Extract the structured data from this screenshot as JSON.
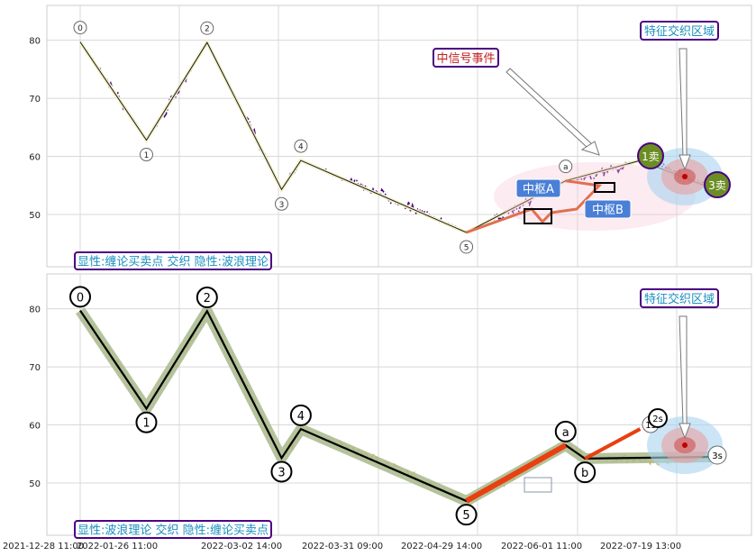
{
  "chart_data": [
    {
      "type": "line",
      "panel": "top",
      "yticks": [
        50,
        60,
        70,
        80
      ],
      "ylim": [
        41,
        86
      ],
      "grid": true,
      "colors": {
        "price": "#4b0082",
        "wave": "#1a1a1a",
        "wave_fill": "#f2f0c8",
        "zone": "#f5c6d6",
        "hub": "#4a7fd6"
      },
      "wave_points": [
        {
          "label": "0",
          "x": "2021-12-31",
          "y": 79.7
        },
        {
          "label": "1",
          "x": "2022-01-24",
          "y": 62.8
        },
        {
          "label": "2",
          "x": "2022-02-15",
          "y": 79.6
        },
        {
          "label": "3",
          "x": "2022-03-14",
          "y": 54.3
        },
        {
          "label": "4",
          "x": "2022-03-21",
          "y": 59.3
        },
        {
          "label": "5",
          "x": "2022-05-20",
          "y": 46.9
        },
        {
          "label": "a",
          "x": "2022-06-25",
          "y": 55.8
        },
        {
          "label": "1卖",
          "x": "2022-07-22",
          "y": 59.3
        },
        {
          "label": "3卖",
          "x": "2022-08-17",
          "y": 54.5
        }
      ],
      "annotations": [
        "中信号事件",
        "特征交织区域",
        "中枢A",
        "中枢B"
      ],
      "legend_text": "显性:缠论买卖点 交织 隐性:波浪理论"
    },
    {
      "type": "line",
      "panel": "bottom",
      "yticks": [
        50,
        60,
        70,
        80
      ],
      "ylim": [
        41,
        86
      ],
      "grid": true,
      "colors": {
        "price": "#e8b030",
        "wave": "#000000",
        "wave_fill": "#a8b88c",
        "trend": "#e84010"
      },
      "wave_points": [
        {
          "label": "0",
          "x": "2021-12-31",
          "y": 79.7
        },
        {
          "label": "1",
          "x": "2022-01-24",
          "y": 62.8
        },
        {
          "label": "2",
          "x": "2022-02-15",
          "y": 79.6
        },
        {
          "label": "3",
          "x": "2022-03-14",
          "y": 54.3
        },
        {
          "label": "4",
          "x": "2022-03-21",
          "y": 59.3
        },
        {
          "label": "5",
          "x": "2022-05-20",
          "y": 46.9
        },
        {
          "label": "a",
          "x": "2022-06-25",
          "y": 56.5
        },
        {
          "label": "b",
          "x": "2022-07-02",
          "y": 54.2
        },
        {
          "label": "3s",
          "x": "2022-08-17",
          "y": 54.5
        }
      ],
      "annotations": [
        "特征交织区域",
        "1s",
        "2s"
      ],
      "legend_text": "显性:波浪理论 交织 隐性:缠论买卖点"
    }
  ],
  "xticks": [
    "2021-12-28 11:00",
    "2022-01-26 11:00",
    "2022-03-02 14:00",
    "2022-03-31 09:00",
    "2022-04-29 14:00",
    "2022-06-01 11:00",
    "2022-07-19 13:00"
  ]
}
